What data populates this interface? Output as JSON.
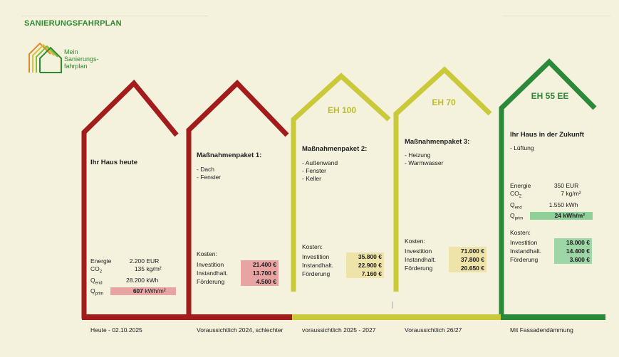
{
  "header": {
    "title": "SANIERUNGSFAHRPLAN"
  },
  "logo": {
    "line1": "Mein",
    "line2": "Sanierungs-",
    "line3": "fahrplan"
  },
  "colors": {
    "red": "#a21c1c",
    "yellow": "#c9c93a",
    "green": "#2a8a3a",
    "bg": "#f4f1dc"
  },
  "houses": [
    {
      "label": "",
      "title": "Ihr Haus heute",
      "items": [],
      "metrics": {
        "energie_label": "Energie",
        "energie_value": "2.200",
        "energie_unit": "EUR",
        "co2_label": "CO",
        "co2_value": "135",
        "co2_unit": "kg/m²",
        "qend_label": "Q",
        "qend_value": "28.200",
        "qend_unit": "kWh",
        "qprim_label": "Q",
        "qprim_value": "607",
        "qprim_unit": "kWh/m²"
      },
      "timeline": "Heute - 02.10.2025"
    },
    {
      "label": "",
      "title": "Maßnahmenpaket 1:",
      "items": [
        "- Dach",
        "- Fenster"
      ],
      "costs": {
        "label": "Kosten:",
        "rows": [
          {
            "name": "Investition",
            "value": "21.400 €"
          },
          {
            "name": "Instandhalt.",
            "value": "13.700 €"
          },
          {
            "name": "Förderung",
            "value": "4.500 €"
          }
        ]
      },
      "timeline": "Voraussichtlich 2024, schlechter"
    },
    {
      "label": "EH 100",
      "title": "Maßnahmenpaket 2:",
      "items": [
        "- Außenwand",
        "- Fenster",
        "- Keller"
      ],
      "costs": {
        "label": "Kosten:",
        "rows": [
          {
            "name": "Investition",
            "value": "35.800 €"
          },
          {
            "name": "Instandhalt.",
            "value": "22.900 €"
          },
          {
            "name": "Förderung",
            "value": "7.160 €"
          }
        ]
      },
      "timeline": "voraussichtlich 2025 - 2027"
    },
    {
      "label": "EH 70",
      "title": "Maßnahmenpaket 3:",
      "items": [
        "- Heizung",
        "- Warmwasser"
      ],
      "costs": {
        "label": "Kosten:",
        "rows": [
          {
            "name": "Investition",
            "value": "71.000 €"
          },
          {
            "name": "Instandhalt.",
            "value": "37.800 €"
          },
          {
            "name": "Förderung",
            "value": "20.650 €"
          }
        ]
      },
      "timeline": "Voraussichtlich 26/27"
    },
    {
      "label": "EH 55 EE",
      "title": "Ihr Haus in der Zukunft",
      "items": [
        "- Lüftung"
      ],
      "metrics": {
        "energie_label": "Energie",
        "energie_value": "350",
        "energie_unit": "EUR",
        "co2_label": "CO",
        "co2_value": "7",
        "co2_unit": "kg/m²",
        "qend_label": "Q",
        "qend_value": "1.550",
        "qend_unit": "kWh",
        "qprim_label": "Q",
        "qprim_value": "24",
        "qprim_unit": "kWh/m²"
      },
      "costs": {
        "label": "Kosten:",
        "rows": [
          {
            "name": "Investition",
            "value": "18.000 €"
          },
          {
            "name": "Instandhalt.",
            "value": "14.400 €"
          },
          {
            "name": "Förderung",
            "value": "3.600 €"
          }
        ]
      },
      "timeline": "Mit Fassadendämmung"
    }
  ],
  "subscripts": {
    "co2": "2",
    "end": "end",
    "prim": "prim"
  }
}
